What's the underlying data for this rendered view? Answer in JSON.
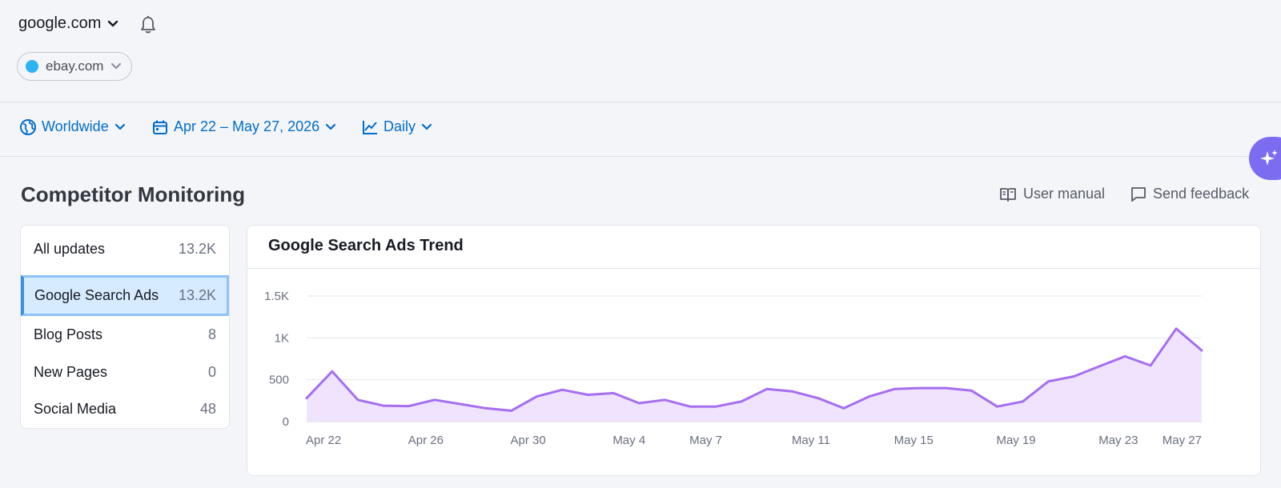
{
  "header": {
    "domain": "google.com",
    "competitor": "ebay.com",
    "competitor_dot_color": "#2bb3f3"
  },
  "filters": {
    "location": "Worldwide",
    "date_range": "Apr 22 – May 27, 2026",
    "granularity": "Daily"
  },
  "page": {
    "title": "Competitor Monitoring",
    "user_manual": "User manual",
    "send_feedback": "Send feedback"
  },
  "sidebar": {
    "items": [
      {
        "label": "All updates",
        "count": "13.2K"
      },
      {
        "label": "Google Search Ads",
        "count": "13.2K"
      },
      {
        "label": "Blog Posts",
        "count": "8"
      },
      {
        "label": "New Pages",
        "count": "0"
      },
      {
        "label": "Social Media",
        "count": "48"
      }
    ],
    "active_index": 1
  },
  "chart": {
    "title": "Google Search Ads Trend"
  },
  "colors": {
    "accent": "#006dca",
    "line": "#a66ef0",
    "fill": "#efe3fd",
    "ai_button": "#7b6cf0"
  },
  "chart_data": {
    "type": "area",
    "title": "Google Search Ads Trend",
    "ylim": [
      0,
      1500
    ],
    "yticks": [
      {
        "value": 0,
        "label": "0"
      },
      {
        "value": 500,
        "label": "500"
      },
      {
        "value": 1000,
        "label": "1K"
      },
      {
        "value": 1500,
        "label": "1.5K"
      }
    ],
    "x_tick_labels": [
      {
        "index": 0,
        "label": "Apr 22"
      },
      {
        "index": 4,
        "label": "Apr 26"
      },
      {
        "index": 8,
        "label": "Apr 30"
      },
      {
        "index": 12,
        "label": "May 4"
      },
      {
        "index": 15,
        "label": "May 7"
      },
      {
        "index": 19,
        "label": "May 11"
      },
      {
        "index": 23,
        "label": "May 15"
      },
      {
        "index": 27,
        "label": "May 19"
      },
      {
        "index": 31,
        "label": "May 23"
      },
      {
        "index": 35,
        "label": "May 27"
      }
    ],
    "series": [
      {
        "values": [
          280,
          600,
          260,
          190,
          185,
          260,
          210,
          160,
          130,
          300,
          380,
          320,
          340,
          220,
          260,
          180,
          180,
          240,
          390,
          360,
          280,
          160,
          300,
          390,
          400,
          400,
          370,
          180,
          240,
          480,
          540,
          660,
          780,
          670,
          1110,
          850
        ]
      }
    ],
    "grid": true,
    "legend": "none"
  }
}
